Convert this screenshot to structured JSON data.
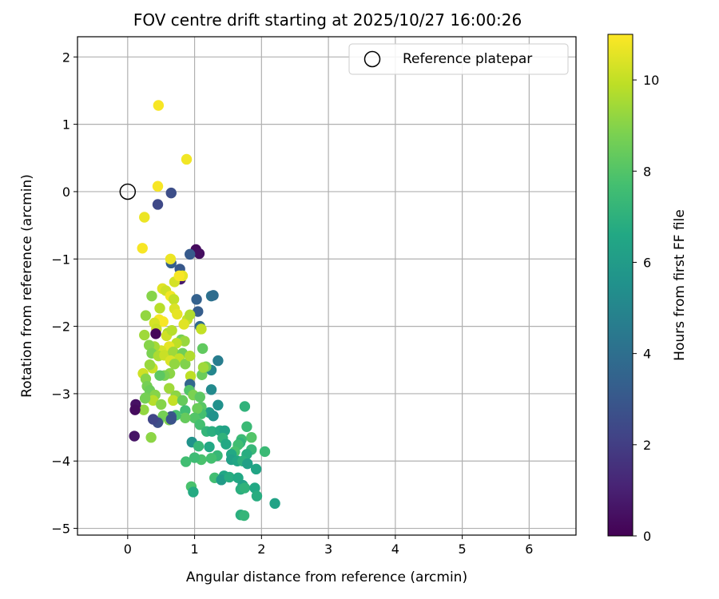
{
  "chart_data": {
    "type": "scatter",
    "title": "FOV centre drift starting at 2025/10/27 16:00:26",
    "xlabel": "Angular distance from reference (arcmin)",
    "ylabel": "Rotation from reference (arcmin)",
    "xlim": [
      -0.75,
      6.7
    ],
    "ylim": [
      -5.1,
      2.3
    ],
    "xticks": [
      0,
      1,
      2,
      3,
      4,
      5,
      6
    ],
    "yticks": [
      -5,
      -4,
      -3,
      -2,
      -1,
      0,
      1,
      2
    ],
    "grid": true,
    "colormap": "viridis",
    "colorbar": {
      "label": "Hours from first FF file",
      "range": [
        0,
        11
      ],
      "ticks": [
        0,
        2,
        4,
        6,
        8,
        10
      ]
    },
    "reference": {
      "label": "Reference platepar",
      "x": 0,
      "y": 0
    },
    "legend_position": "top-right",
    "points": [
      [
        0.46,
        1.28,
        10.9
      ],
      [
        0.88,
        0.48,
        10.8
      ],
      [
        0.45,
        0.08,
        10.9
      ],
      [
        0.25,
        -0.38,
        10.7
      ],
      [
        0.22,
        -0.84,
        10.9
      ],
      [
        0.65,
        -0.02,
        2.6
      ],
      [
        0.45,
        -0.19,
        2.4
      ],
      [
        1.02,
        -0.86,
        0.3
      ],
      [
        1.07,
        -0.92,
        0.4
      ],
      [
        0.93,
        -0.93,
        3.1
      ],
      [
        0.65,
        -1.06,
        3.3
      ],
      [
        0.78,
        -1.15,
        3.0
      ],
      [
        0.79,
        -1.3,
        0.8
      ],
      [
        0.64,
        -1.0,
        10.7
      ],
      [
        0.7,
        -1.34,
        10.3
      ],
      [
        0.82,
        -1.25,
        10.6
      ],
      [
        0.77,
        -1.25,
        10.9
      ],
      [
        1.25,
        -1.55,
        4.2
      ],
      [
        1.28,
        -1.54,
        3.9
      ],
      [
        1.03,
        -1.6,
        3.4
      ],
      [
        1.05,
        -1.78,
        3.2
      ],
      [
        0.36,
        -1.55,
        9.0
      ],
      [
        0.52,
        -1.44,
        10.5
      ],
      [
        0.57,
        -1.47,
        10.2
      ],
      [
        0.64,
        -1.55,
        10.8
      ],
      [
        0.69,
        -1.6,
        10.0
      ],
      [
        0.48,
        -1.73,
        9.8
      ],
      [
        0.7,
        -1.74,
        10.4
      ],
      [
        0.74,
        -1.82,
        10.6
      ],
      [
        0.89,
        -1.9,
        10.0
      ],
      [
        0.93,
        -1.83,
        9.7
      ],
      [
        0.84,
        -1.97,
        10.5
      ],
      [
        0.47,
        -1.9,
        10.9
      ],
      [
        0.53,
        -1.93,
        10.9
      ],
      [
        0.4,
        -1.95,
        10.3
      ],
      [
        0.43,
        -2.04,
        10.1
      ],
      [
        0.42,
        -2.11,
        0.2
      ],
      [
        0.27,
        -1.84,
        9.2
      ],
      [
        0.25,
        -2.13,
        9.4
      ],
      [
        1.08,
        -2.0,
        3.8
      ],
      [
        1.1,
        -2.04,
        10.0
      ],
      [
        0.6,
        -2.1,
        9.6
      ],
      [
        0.58,
        -2.14,
        10.2
      ],
      [
        0.66,
        -2.06,
        9.8
      ],
      [
        0.8,
        -2.2,
        8.7
      ],
      [
        0.85,
        -2.22,
        9.3
      ],
      [
        0.73,
        -2.25,
        9.9
      ],
      [
        0.62,
        -2.3,
        10.6
      ],
      [
        0.5,
        -2.36,
        10.3
      ],
      [
        0.4,
        -2.3,
        9.5
      ],
      [
        0.32,
        -2.28,
        9.0
      ],
      [
        0.36,
        -2.4,
        8.8
      ],
      [
        0.46,
        -2.44,
        9.6
      ],
      [
        0.55,
        -2.43,
        10.1
      ],
      [
        0.68,
        -2.38,
        9.4
      ],
      [
        0.82,
        -2.4,
        8.6
      ],
      [
        0.77,
        -2.48,
        10.0
      ],
      [
        0.64,
        -2.51,
        10.4
      ],
      [
        0.7,
        -2.56,
        9.2
      ],
      [
        0.86,
        -2.56,
        8.9
      ],
      [
        0.93,
        -2.44,
        9.7
      ],
      [
        1.12,
        -2.33,
        8.3
      ],
      [
        1.35,
        -2.51,
        4.6
      ],
      [
        1.25,
        -2.65,
        5.0
      ],
      [
        1.17,
        -2.6,
        8.8
      ],
      [
        1.11,
        -2.72,
        8.5
      ],
      [
        1.13,
        -2.61,
        9.4
      ],
      [
        0.94,
        -2.74,
        9.9
      ],
      [
        0.63,
        -2.7,
        9.1
      ],
      [
        0.55,
        -2.73,
        8.8
      ],
      [
        0.48,
        -2.73,
        8.2
      ],
      [
        0.37,
        -2.62,
        10.1
      ],
      [
        0.33,
        -2.57,
        9.3
      ],
      [
        0.23,
        -2.7,
        10.2
      ],
      [
        0.27,
        -2.78,
        9.0
      ],
      [
        0.29,
        -2.89,
        8.7
      ],
      [
        0.33,
        -2.95,
        8.5
      ],
      [
        0.41,
        -3.02,
        9.0
      ],
      [
        0.27,
        -3.06,
        8.6
      ],
      [
        0.24,
        -3.24,
        9.2
      ],
      [
        0.38,
        -3.1,
        9.8
      ],
      [
        0.5,
        -3.16,
        9.0
      ],
      [
        0.62,
        -2.92,
        9.4
      ],
      [
        0.72,
        -3.03,
        9.1
      ],
      [
        0.68,
        -3.1,
        10.0
      ],
      [
        0.82,
        -3.1,
        8.4
      ],
      [
        0.93,
        -2.86,
        3.6
      ],
      [
        0.92,
        -2.95,
        8.0
      ],
      [
        0.98,
        -3.02,
        8.8
      ],
      [
        1.08,
        -3.05,
        8.2
      ],
      [
        1.25,
        -2.94,
        5.2
      ],
      [
        1.35,
        -3.17,
        5.5
      ],
      [
        1.22,
        -3.28,
        6.0
      ],
      [
        1.28,
        -3.33,
        5.6
      ],
      [
        1.1,
        -3.2,
        8.1
      ],
      [
        1.1,
        -3.3,
        7.7
      ],
      [
        1.04,
        -3.22,
        8.5
      ],
      [
        1.0,
        -3.36,
        8.0
      ],
      [
        0.86,
        -3.25,
        7.6
      ],
      [
        0.86,
        -3.36,
        8.4
      ],
      [
        0.72,
        -3.32,
        7.8
      ],
      [
        0.65,
        -3.34,
        3.0
      ],
      [
        0.62,
        -3.39,
        8.9
      ],
      [
        0.53,
        -3.33,
        8.7
      ],
      [
        0.46,
        -3.41,
        8.5
      ],
      [
        0.45,
        -3.43,
        2.6
      ],
      [
        0.38,
        -3.38,
        2.3
      ],
      [
        0.12,
        -3.16,
        0.5
      ],
      [
        0.11,
        -3.24,
        0.3
      ],
      [
        0.1,
        -3.63,
        0.6
      ],
      [
        0.35,
        -3.65,
        9.1
      ],
      [
        0.26,
        -3.07,
        8.7
      ],
      [
        0.65,
        -3.38,
        2.8
      ],
      [
        1.08,
        -3.46,
        7.7
      ],
      [
        1.18,
        -3.56,
        7.2
      ],
      [
        1.26,
        -3.56,
        6.9
      ],
      [
        1.38,
        -3.55,
        6.7
      ],
      [
        1.45,
        -3.55,
        6.3
      ],
      [
        1.42,
        -3.66,
        7.1
      ],
      [
        1.47,
        -3.75,
        6.6
      ],
      [
        1.75,
        -3.19,
        7.1
      ],
      [
        1.78,
        -3.49,
        7.4
      ],
      [
        1.85,
        -3.65,
        8.0
      ],
      [
        1.7,
        -3.68,
        7.5
      ],
      [
        1.68,
        -3.73,
        7.1
      ],
      [
        1.65,
        -3.76,
        7.6
      ],
      [
        1.85,
        -3.83,
        7.3
      ],
      [
        1.78,
        -3.9,
        6.8
      ],
      [
        1.6,
        -3.86,
        7.8
      ],
      [
        1.55,
        -3.9,
        6.6
      ],
      [
        1.55,
        -3.98,
        6.2
      ],
      [
        1.64,
        -4.0,
        6.5
      ],
      [
        1.72,
        -4.0,
        7.0
      ],
      [
        1.79,
        -4.04,
        6.2
      ],
      [
        1.92,
        -4.12,
        6.4
      ],
      [
        2.05,
        -3.86,
        7.4
      ],
      [
        1.22,
        -3.79,
        6.6
      ],
      [
        1.34,
        -3.92,
        7.3
      ],
      [
        1.25,
        -3.96,
        7.7
      ],
      [
        1.1,
        -3.98,
        7.8
      ],
      [
        1.0,
        -3.95,
        7.5
      ],
      [
        0.96,
        -3.72,
        5.6
      ],
      [
        1.06,
        -3.78,
        7.3
      ],
      [
        0.87,
        -4.01,
        7.6
      ],
      [
        1.3,
        -4.25,
        7.6
      ],
      [
        1.44,
        -4.22,
        6.5
      ],
      [
        1.4,
        -4.28,
        6.0
      ],
      [
        1.52,
        -4.24,
        6.8
      ],
      [
        1.65,
        -4.25,
        6.6
      ],
      [
        1.72,
        -4.36,
        6.2
      ],
      [
        1.69,
        -4.42,
        6.9
      ],
      [
        1.75,
        -4.4,
        7.1
      ],
      [
        1.9,
        -4.4,
        6.6
      ],
      [
        1.93,
        -4.52,
        6.8
      ],
      [
        0.95,
        -4.38,
        7.8
      ],
      [
        0.98,
        -4.46,
        6.7
      ],
      [
        1.69,
        -4.8,
        6.9
      ],
      [
        1.74,
        -4.81,
        7.2
      ],
      [
        2.2,
        -4.63,
        6.3
      ]
    ]
  }
}
